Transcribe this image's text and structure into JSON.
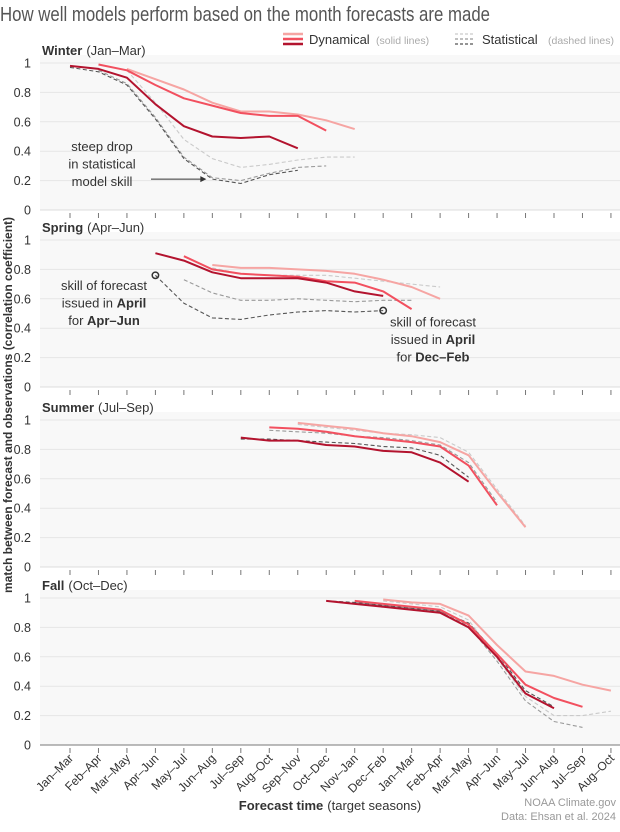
{
  "chart_data": {
    "type": "line",
    "title": "How well models perform based on the month forecasts are made",
    "ylabel": "match between forecast and observations (correlation coefficient)",
    "xlabel_bold": "Forecast time",
    "xlabel_rest": "(target seasons)",
    "ylim": [
      0,
      1
    ],
    "yticks": [
      "0",
      "0.2",
      "0.4",
      "0.6",
      "0.8",
      "1"
    ],
    "grid": true,
    "categories": [
      "Jan–Mar",
      "Feb–Apr",
      "Mar–May",
      "Apr–Jun",
      "May–Jul",
      "Jun–Aug",
      "Jul–Sep",
      "Aug–Oct",
      "Sep–Nov",
      "Oct–Dec",
      "Nov–Jan",
      "Dec–Feb",
      "Jan–Mar",
      "Feb–Apr",
      "Mar–May",
      "Apr–Jun",
      "May–Jul",
      "Jun–Aug",
      "Jul–Sep",
      "Aug–Oct"
    ],
    "legend": {
      "placement": "top-right",
      "dynamical": "Dynamical",
      "dynamical_note": "(solid lines)",
      "statistical": "Statistical",
      "statistical_note": "(dashed lines)"
    },
    "colors": {
      "dyn": [
        "#b3132e",
        "#f2505f",
        "#f6a5a3"
      ],
      "stat": [
        "#555555",
        "#9a9a9a",
        "#cacaca"
      ],
      "plot_bg": "#f8f8f8",
      "grid": "#e6e6e6",
      "title": "#555555"
    },
    "panels": [
      {
        "name_bold": "Winter",
        "name_rest": "(Jan–Mar)",
        "dynamical": [
          {
            "start": 0,
            "values": [
              0.98,
              0.96,
              0.9,
              0.72,
              0.57,
              0.5,
              0.49,
              0.5,
              0.42
            ]
          },
          {
            "start": 1,
            "values": [
              0.99,
              0.95,
              0.85,
              0.76,
              0.71,
              0.66,
              0.64,
              0.64,
              0.54
            ]
          },
          {
            "start": 2,
            "values": [
              0.96,
              0.89,
              0.82,
              0.73,
              0.67,
              0.67,
              0.65,
              0.61,
              0.55
            ]
          }
        ],
        "statistical": [
          {
            "start": 0,
            "values": [
              0.97,
              0.94,
              0.85,
              0.62,
              0.35,
              0.21,
              0.18,
              0.24,
              0.27
            ]
          },
          {
            "start": 1,
            "values": [
              0.95,
              0.86,
              0.63,
              0.36,
              0.22,
              0.2,
              0.25,
              0.29,
              0.3
            ]
          },
          {
            "start": 2,
            "values": [
              0.95,
              0.73,
              0.48,
              0.35,
              0.29,
              0.31,
              0.34,
              0.36,
              0.36
            ]
          }
        ],
        "annotations": [
          {
            "lines": [
              [
                "steep drop"
              ],
              [
                "in statistical"
              ],
              [
                "model skill"
              ]
            ],
            "arrow_to": [
              5,
              0.21
            ]
          }
        ]
      },
      {
        "name_bold": "Spring",
        "name_rest": "(Apr–Jun)",
        "dynamical": [
          {
            "start": 3,
            "values": [
              0.91,
              0.86,
              0.78,
              0.74,
              0.74,
              0.74,
              0.71,
              0.65,
              0.62
            ]
          },
          {
            "start": 4,
            "values": [
              0.89,
              0.8,
              0.77,
              0.76,
              0.75,
              0.72,
              0.71,
              0.65,
              0.53
            ]
          },
          {
            "start": 5,
            "values": [
              0.83,
              0.81,
              0.81,
              0.8,
              0.79,
              0.77,
              0.73,
              0.68,
              0.6
            ]
          }
        ],
        "statistical": [
          {
            "start": 3,
            "values": [
              0.76,
              0.57,
              0.47,
              0.46,
              0.49,
              0.51,
              0.52,
              0.51,
              0.52
            ]
          },
          {
            "start": 4,
            "values": [
              0.73,
              0.64,
              0.59,
              0.59,
              0.6,
              0.59,
              0.58,
              0.59,
              0.59
            ]
          },
          {
            "start": 5,
            "values": [
              0.81,
              0.77,
              0.76,
              0.76,
              0.76,
              0.74,
              0.72,
              0.7,
              0.68
            ]
          }
        ],
        "annotations": [
          {
            "lines": [
              [
                "skill of forecast"
              ],
              [
                "issued in ",
                "April"
              ],
              [
                "for ",
                "Apr–Jun"
              ]
            ],
            "marker": [
              3,
              0.76
            ]
          },
          {
            "lines": [
              [
                "skill of forecast"
              ],
              [
                "issued in ",
                "April"
              ],
              [
                "for ",
                "Dec–Feb"
              ]
            ],
            "marker": [
              11,
              0.52
            ]
          }
        ]
      },
      {
        "name_bold": "Summer",
        "name_rest": "(Jul–Sep)",
        "dynamical": [
          {
            "start": 6,
            "values": [
              0.88,
              0.86,
              0.86,
              0.83,
              0.82,
              0.79,
              0.78,
              0.71,
              0.58
            ]
          },
          {
            "start": 7,
            "values": [
              0.95,
              0.94,
              0.92,
              0.89,
              0.87,
              0.85,
              0.82,
              0.69,
              0.42
            ]
          },
          {
            "start": 8,
            "values": [
              0.98,
              0.96,
              0.94,
              0.91,
              0.89,
              0.85,
              0.76,
              0.51,
              0.27
            ]
          }
        ],
        "statistical": [
          {
            "start": 6,
            "values": [
              0.87,
              0.87,
              0.86,
              0.85,
              0.84,
              0.82,
              0.81,
              0.76,
              0.61
            ]
          },
          {
            "start": 7,
            "values": [
              0.93,
              0.92,
              0.91,
              0.89,
              0.88,
              0.86,
              0.83,
              0.71,
              0.44
            ]
          },
          {
            "start": 8,
            "values": [
              0.97,
              0.95,
              0.93,
              0.91,
              0.9,
              0.88,
              0.78,
              0.53,
              0.28
            ]
          }
        ],
        "annotations": []
      },
      {
        "name_bold": "Fall",
        "name_rest": "(Oct–Dec)",
        "dynamical": [
          {
            "start": 9,
            "values": [
              0.98,
              0.96,
              0.94,
              0.92,
              0.9,
              0.8,
              0.6,
              0.35,
              0.25
            ]
          },
          {
            "start": 10,
            "values": [
              0.98,
              0.96,
              0.94,
              0.92,
              0.82,
              0.62,
              0.41,
              0.32,
              0.26
            ]
          },
          {
            "start": 11,
            "values": [
              0.99,
              0.97,
              0.96,
              0.88,
              0.68,
              0.5,
              0.47,
              0.41,
              0.37
            ]
          }
        ],
        "statistical": [
          {
            "start": 9,
            "values": [
              0.98,
              0.97,
              0.95,
              0.93,
              0.91,
              0.83,
              0.62,
              0.37,
              0.26
            ]
          },
          {
            "start": 10,
            "values": [
              0.97,
              0.95,
              0.93,
              0.91,
              0.81,
              0.57,
              0.3,
              0.16,
              0.12
            ]
          },
          {
            "start": 11,
            "values": [
              0.98,
              0.96,
              0.94,
              0.85,
              0.59,
              0.33,
              0.2,
              0.2,
              0.23
            ]
          }
        ],
        "annotations": []
      }
    ],
    "credits": [
      "NOAA Climate.gov",
      "Data: Ehsan et al. 2024"
    ]
  }
}
